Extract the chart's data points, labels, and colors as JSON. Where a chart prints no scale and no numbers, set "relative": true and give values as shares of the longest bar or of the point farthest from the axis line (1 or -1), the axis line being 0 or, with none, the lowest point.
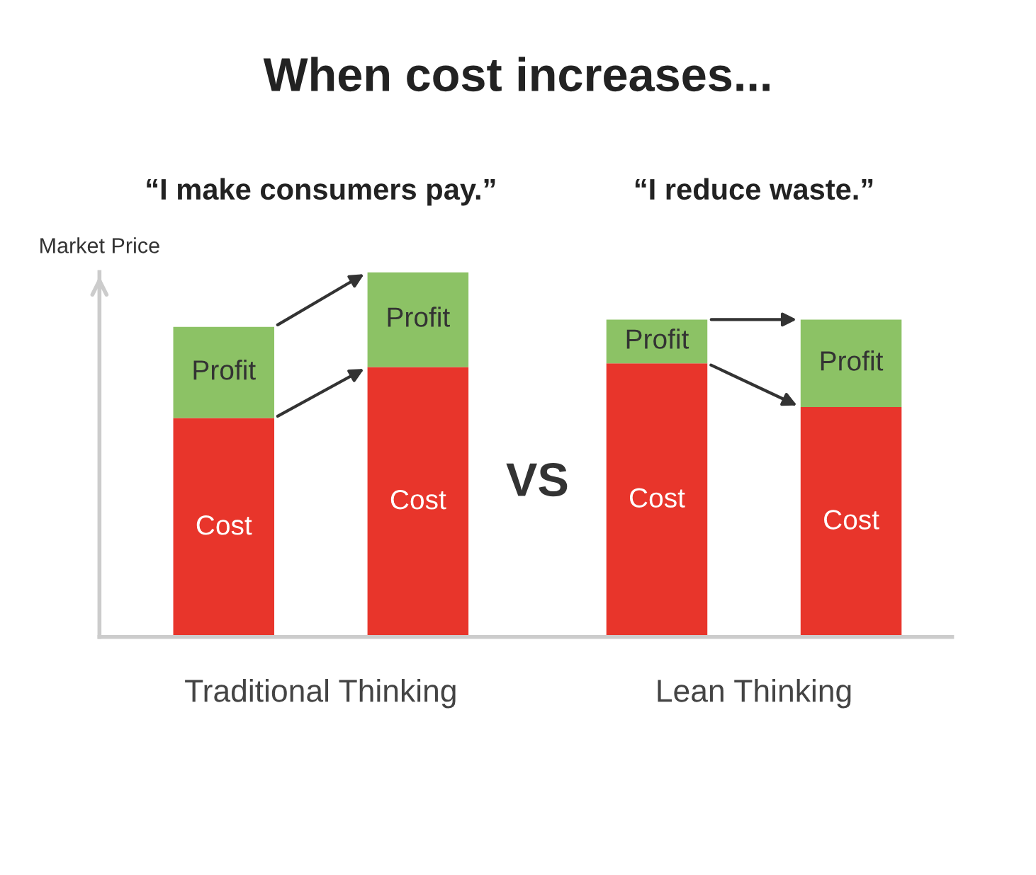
{
  "chart_data": {
    "type": "bar",
    "title": "When cost increases...",
    "ylabel": "Market Price",
    "categories": [
      null,
      null,
      null,
      null
    ],
    "stacked": true,
    "relative": true,
    "legend": false,
    "series": [
      {
        "name": "Cost",
        "color": "#e8352b",
        "values": [
          0.6,
          0.74,
          0.75,
          0.63
        ]
      },
      {
        "name": "Profit",
        "color": "#8cc265",
        "values": [
          0.25,
          0.26,
          0.12,
          0.24
        ]
      }
    ],
    "annotations": [
      "“I make consumers pay.”",
      "“I reduce waste.”",
      "VS",
      "Traditional Thinking",
      "Lean Thinking"
    ]
  }
}
